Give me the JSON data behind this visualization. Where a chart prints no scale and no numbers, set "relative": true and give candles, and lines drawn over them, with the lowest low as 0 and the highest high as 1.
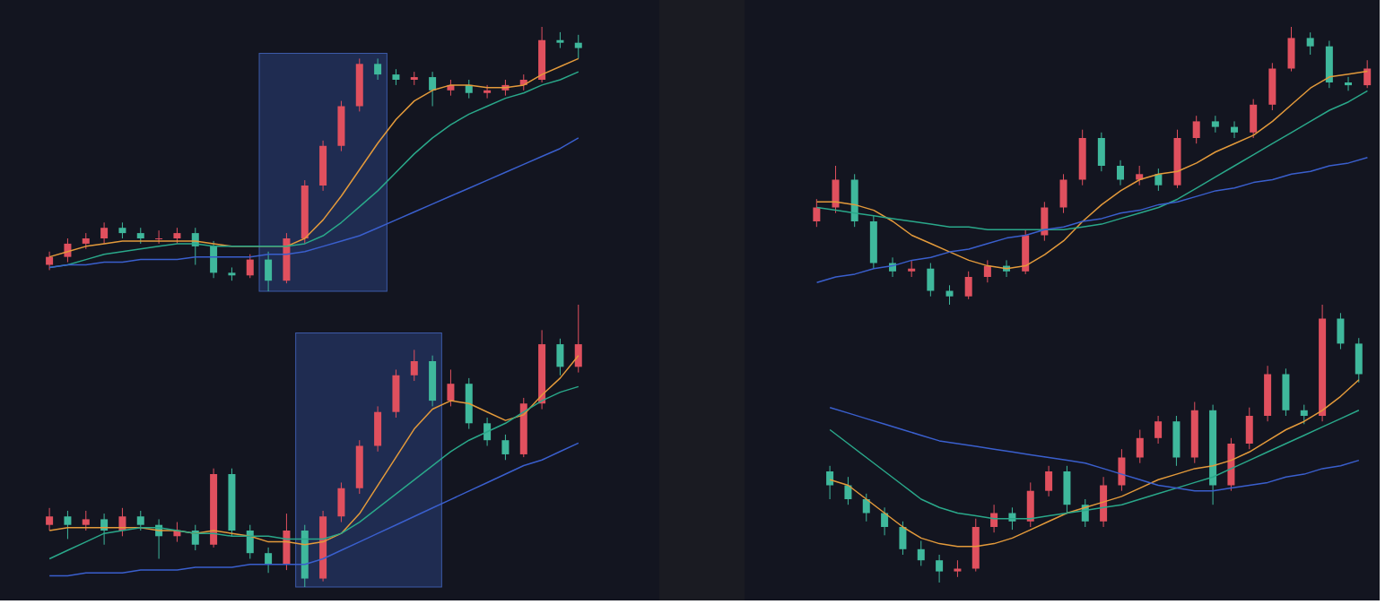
{
  "chart_data": [
    {
      "type": "candlestick",
      "relative": true,
      "colors": [
        "#e0505e",
        "#e0505e",
        "#e0505e",
        "#e0505e",
        "#3fb89c",
        "#3fb89c",
        "#e0505e",
        "#e0505e",
        "#3fb89c",
        "#3fb89c",
        "#3fb89c",
        "#e0505e",
        "#3fb89c",
        "#e0505e",
        "#e0505e",
        "#e0505e",
        "#e0505e",
        "#e0505e",
        "#3fb89c",
        "#3fb89c",
        "#e0505e",
        "#3fb89c",
        "#e0505e",
        "#3fb89c",
        "#e0505e",
        "#e0505e",
        "#e0505e",
        "#e0505e",
        "#3fb89c",
        "#3fb89c"
      ],
      "categories": [
        null,
        null,
        null,
        null,
        null,
        null,
        null,
        null,
        null,
        null,
        null,
        null,
        null,
        null,
        null,
        null,
        null,
        null,
        null,
        null,
        null,
        null,
        null,
        null,
        null,
        null,
        null,
        null,
        null,
        null
      ],
      "ohlc": [
        [
          0.1,
          0.15,
          0.08,
          0.13
        ],
        [
          0.13,
          0.2,
          0.11,
          0.18
        ],
        [
          0.18,
          0.22,
          0.16,
          0.2
        ],
        [
          0.2,
          0.26,
          0.18,
          0.24
        ],
        [
          0.24,
          0.26,
          0.2,
          0.22
        ],
        [
          0.22,
          0.24,
          0.18,
          0.2
        ],
        [
          0.2,
          0.23,
          0.18,
          0.2
        ],
        [
          0.2,
          0.24,
          0.18,
          0.22
        ],
        [
          0.22,
          0.24,
          0.1,
          0.17
        ],
        [
          0.17,
          0.19,
          0.05,
          0.07
        ],
        [
          0.07,
          0.09,
          0.04,
          0.06
        ],
        [
          0.06,
          0.14,
          0.05,
          0.12
        ],
        [
          0.12,
          0.15,
          0,
          0.04
        ],
        [
          0.04,
          0.22,
          0.03,
          0.2
        ],
        [
          0.2,
          0.42,
          0.18,
          0.4
        ],
        [
          0.4,
          0.57,
          0.38,
          0.55
        ],
        [
          0.55,
          0.72,
          0.53,
          0.7
        ],
        [
          0.7,
          0.88,
          0.68,
          0.86
        ],
        [
          0.86,
          0.88,
          0.8,
          0.82
        ],
        [
          0.82,
          0.84,
          0.78,
          0.8
        ],
        [
          0.8,
          0.83,
          0.78,
          0.81
        ],
        [
          0.81,
          0.83,
          0.7,
          0.76
        ],
        [
          0.76,
          0.8,
          0.74,
          0.78
        ],
        [
          0.78,
          0.8,
          0.73,
          0.75
        ],
        [
          0.75,
          0.78,
          0.73,
          0.76
        ],
        [
          0.76,
          0.8,
          0.74,
          0.78
        ],
        [
          0.78,
          0.82,
          0.76,
          0.8
        ],
        [
          0.8,
          1,
          0.79,
          0.95
        ],
        [
          0.95,
          0.98,
          0.92,
          0.94
        ],
        [
          0.94,
          0.97,
          0.88,
          0.92
        ]
      ],
      "series": [
        {
          "type": "line",
          "color": "#e39a3b",
          "values": [
            0.13,
            0.15,
            0.17,
            0.18,
            0.19,
            0.19,
            0.19,
            0.19,
            0.19,
            0.18,
            0.17,
            0.17,
            0.17,
            0.17,
            0.2,
            0.27,
            0.36,
            0.46,
            0.56,
            0.65,
            0.72,
            0.76,
            0.78,
            0.78,
            0.77,
            0.77,
            0.78,
            0.82,
            0.85,
            0.88
          ]
        },
        {
          "type": "line",
          "color": "#2aa88a",
          "values": [
            0.09,
            0.1,
            0.12,
            0.14,
            0.15,
            0.16,
            0.17,
            0.18,
            0.18,
            0.17,
            0.17,
            0.17,
            0.17,
            0.17,
            0.18,
            0.21,
            0.26,
            0.32,
            0.38,
            0.45,
            0.52,
            0.58,
            0.63,
            0.67,
            0.7,
            0.73,
            0.75,
            0.78,
            0.8,
            0.83
          ]
        },
        {
          "type": "line",
          "color": "#3a5fcd",
          "values": [
            0.09,
            0.1,
            0.1,
            0.11,
            0.11,
            0.12,
            0.12,
            0.12,
            0.13,
            0.13,
            0.13,
            0.13,
            0.14,
            0.14,
            0.15,
            0.17,
            0.19,
            0.21,
            0.24,
            0.27,
            0.3,
            0.33,
            0.36,
            0.39,
            0.42,
            0.45,
            0.48,
            0.51,
            0.54,
            0.58
          ]
        }
      ]
    },
    {
      "type": "candlestick",
      "relative": true,
      "colors": [
        "#e0505e",
        "#e0505e",
        "#3fb89c",
        "#3fb89c",
        "#3fb89c",
        "#e0505e",
        "#3fb89c",
        "#3fb89c",
        "#e0505e",
        "#e0505e",
        "#3fb89c",
        "#e0505e",
        "#e0505e",
        "#e0505e",
        "#e0505e",
        "#3fb89c",
        "#3fb89c",
        "#e0505e",
        "#3fb89c",
        "#e0505e",
        "#e0505e",
        "#3fb89c",
        "#3fb89c",
        "#e0505e",
        "#e0505e",
        "#e0505e",
        "#3fb89c",
        "#3fb89c",
        "#3fb89c",
        "#e0505e"
      ],
      "categories": [
        null,
        null,
        null,
        null,
        null,
        null,
        null,
        null,
        null,
        null,
        null,
        null,
        null,
        null,
        null,
        null,
        null,
        null,
        null,
        null,
        null,
        null,
        null,
        null,
        null,
        null,
        null,
        null,
        null,
        null
      ],
      "ohlc": [
        [
          0.3,
          0.38,
          0.28,
          0.35
        ],
        [
          0.35,
          0.5,
          0.33,
          0.45
        ],
        [
          0.45,
          0.47,
          0.28,
          0.3
        ],
        [
          0.3,
          0.32,
          0.13,
          0.15
        ],
        [
          0.15,
          0.17,
          0.1,
          0.12
        ],
        [
          0.12,
          0.16,
          0.1,
          0.13
        ],
        [
          0.13,
          0.15,
          0.03,
          0.05
        ],
        [
          0.05,
          0.07,
          0,
          0.03
        ],
        [
          0.03,
          0.12,
          0.02,
          0.1
        ],
        [
          0.1,
          0.16,
          0.08,
          0.14
        ],
        [
          0.14,
          0.16,
          0.1,
          0.12
        ],
        [
          0.12,
          0.27,
          0.11,
          0.25
        ],
        [
          0.25,
          0.37,
          0.23,
          0.35
        ],
        [
          0.35,
          0.47,
          0.33,
          0.45
        ],
        [
          0.45,
          0.63,
          0.43,
          0.6
        ],
        [
          0.6,
          0.62,
          0.48,
          0.5
        ],
        [
          0.5,
          0.52,
          0.43,
          0.45
        ],
        [
          0.45,
          0.5,
          0.43,
          0.47
        ],
        [
          0.47,
          0.49,
          0.41,
          0.43
        ],
        [
          0.43,
          0.63,
          0.42,
          0.6
        ],
        [
          0.6,
          0.68,
          0.58,
          0.66
        ],
        [
          0.66,
          0.68,
          0.62,
          0.64
        ],
        [
          0.64,
          0.66,
          0.6,
          0.62
        ],
        [
          0.62,
          0.74,
          0.6,
          0.72
        ],
        [
          0.72,
          0.87,
          0.7,
          0.85
        ],
        [
          0.85,
          1,
          0.84,
          0.96
        ],
        [
          0.96,
          0.98,
          0.9,
          0.93
        ],
        [
          0.93,
          0.95,
          0.78,
          0.8
        ],
        [
          0.8,
          0.82,
          0.77,
          0.79
        ],
        [
          0.79,
          0.88,
          0.78,
          0.85
        ]
      ],
      "series": [
        {
          "type": "line",
          "color": "#e39a3b",
          "values": [
            0.37,
            0.37,
            0.36,
            0.34,
            0.3,
            0.25,
            0.22,
            0.19,
            0.16,
            0.14,
            0.13,
            0.14,
            0.18,
            0.23,
            0.3,
            0.36,
            0.41,
            0.45,
            0.47,
            0.48,
            0.51,
            0.55,
            0.58,
            0.61,
            0.66,
            0.72,
            0.78,
            0.82,
            0.83,
            0.84
          ]
        },
        {
          "type": "line",
          "color": "#2aa88a",
          "values": [
            0.35,
            0.34,
            0.33,
            0.32,
            0.31,
            0.3,
            0.29,
            0.28,
            0.28,
            0.27,
            0.27,
            0.27,
            0.27,
            0.27,
            0.28,
            0.29,
            0.31,
            0.33,
            0.35,
            0.38,
            0.42,
            0.46,
            0.5,
            0.54,
            0.58,
            0.62,
            0.66,
            0.7,
            0.73,
            0.77
          ]
        },
        {
          "type": "line",
          "color": "#3a5fcd",
          "values": [
            0.08,
            0.1,
            0.11,
            0.13,
            0.14,
            0.16,
            0.17,
            0.19,
            0.2,
            0.22,
            0.24,
            0.25,
            0.27,
            0.28,
            0.3,
            0.31,
            0.33,
            0.34,
            0.36,
            0.37,
            0.39,
            0.41,
            0.42,
            0.44,
            0.45,
            0.47,
            0.48,
            0.5,
            0.51,
            0.53
          ]
        }
      ]
    },
    {
      "type": "candlestick",
      "relative": true,
      "colors": [
        "#e0505e",
        "#3fb89c",
        "#e0505e",
        "#3fb89c",
        "#e0505e",
        "#3fb89c",
        "#3fb89c",
        "#e0505e",
        "#3fb89c",
        "#e0505e",
        "#3fb89c",
        "#3fb89c",
        "#3fb89c",
        "#e0505e",
        "#3fb89c",
        "#e0505e",
        "#e0505e",
        "#e0505e",
        "#e0505e",
        "#e0505e",
        "#e0505e",
        "#3fb89c",
        "#e0505e",
        "#3fb89c",
        "#3fb89c",
        "#3fb89c",
        "#e0505e",
        "#e0505e",
        "#3fb89c",
        "#e0505e"
      ],
      "categories": [
        null,
        null,
        null,
        null,
        null,
        null,
        null,
        null,
        null,
        null,
        null,
        null,
        null,
        null,
        null,
        null,
        null,
        null,
        null,
        null,
        null,
        null,
        null,
        null,
        null,
        null,
        null,
        null,
        null,
        null
      ],
      "ohlc": [
        [
          0.22,
          0.28,
          0.2,
          0.25
        ],
        [
          0.25,
          0.27,
          0.17,
          0.22
        ],
        [
          0.22,
          0.27,
          0.2,
          0.24
        ],
        [
          0.24,
          0.26,
          0.15,
          0.2
        ],
        [
          0.2,
          0.28,
          0.18,
          0.25
        ],
        [
          0.25,
          0.27,
          0.2,
          0.22
        ],
        [
          0.22,
          0.24,
          0.1,
          0.18
        ],
        [
          0.18,
          0.23,
          0.16,
          0.2
        ],
        [
          0.2,
          0.22,
          0.13,
          0.15
        ],
        [
          0.15,
          0.42,
          0.14,
          0.4
        ],
        [
          0.4,
          0.42,
          0.18,
          0.2
        ],
        [
          0.2,
          0.22,
          0.1,
          0.12
        ],
        [
          0.12,
          0.14,
          0.05,
          0.08
        ],
        [
          0.08,
          0.26,
          0.06,
          0.2
        ],
        [
          0.2,
          0.22,
          0,
          0.03
        ],
        [
          0.03,
          0.27,
          0.02,
          0.25
        ],
        [
          0.25,
          0.37,
          0.23,
          0.35
        ],
        [
          0.35,
          0.52,
          0.33,
          0.5
        ],
        [
          0.5,
          0.64,
          0.48,
          0.62
        ],
        [
          0.62,
          0.77,
          0.6,
          0.75
        ],
        [
          0.75,
          0.84,
          0.73,
          0.8
        ],
        [
          0.8,
          0.82,
          0.64,
          0.66
        ],
        [
          0.66,
          0.77,
          0.64,
          0.72
        ],
        [
          0.72,
          0.74,
          0.56,
          0.58
        ],
        [
          0.58,
          0.6,
          0.5,
          0.52
        ],
        [
          0.52,
          0.54,
          0.45,
          0.47
        ],
        [
          0.47,
          0.67,
          0.46,
          0.65
        ],
        [
          0.65,
          0.91,
          0.63,
          0.86
        ],
        [
          0.86,
          0.88,
          0.75,
          0.78
        ],
        [
          0.78,
          1,
          0.76,
          0.86
        ]
      ],
      "series": [
        {
          "type": "line",
          "color": "#e39a3b",
          "values": [
            0.2,
            0.21,
            0.21,
            0.21,
            0.21,
            0.21,
            0.2,
            0.2,
            0.19,
            0.2,
            0.19,
            0.18,
            0.16,
            0.16,
            0.15,
            0.16,
            0.19,
            0.26,
            0.36,
            0.46,
            0.56,
            0.63,
            0.66,
            0.65,
            0.62,
            0.59,
            0.61,
            0.68,
            0.74,
            0.82
          ]
        },
        {
          "type": "line",
          "color": "#2aa88a",
          "values": [
            0.1,
            0.13,
            0.16,
            0.19,
            0.2,
            0.21,
            0.21,
            0.2,
            0.19,
            0.19,
            0.18,
            0.18,
            0.18,
            0.17,
            0.17,
            0.17,
            0.19,
            0.23,
            0.28,
            0.33,
            0.38,
            0.43,
            0.48,
            0.52,
            0.55,
            0.58,
            0.62,
            0.66,
            0.69,
            0.71
          ]
        },
        {
          "type": "line",
          "color": "#3a5fcd",
          "values": [
            0.04,
            0.04,
            0.05,
            0.05,
            0.05,
            0.06,
            0.06,
            0.06,
            0.07,
            0.07,
            0.07,
            0.08,
            0.08,
            0.08,
            0.08,
            0.1,
            0.13,
            0.16,
            0.19,
            0.22,
            0.25,
            0.28,
            0.31,
            0.34,
            0.37,
            0.4,
            0.43,
            0.45,
            0.48,
            0.51
          ]
        }
      ]
    },
    {
      "type": "candlestick",
      "relative": true,
      "colors": [
        "#3fb89c",
        "#3fb89c",
        "#3fb89c",
        "#3fb89c",
        "#3fb89c",
        "#3fb89c",
        "#3fb89c",
        "#e0505e",
        "#e0505e",
        "#e0505e",
        "#3fb89c",
        "#e0505e",
        "#e0505e",
        "#3fb89c",
        "#3fb89c",
        "#e0505e",
        "#e0505e",
        "#e0505e",
        "#e0505e",
        "#3fb89c",
        "#e0505e",
        "#3fb89c",
        "#e0505e",
        "#e0505e",
        "#e0505e",
        "#3fb89c",
        "#3fb89c",
        "#e0505e",
        "#3fb89c",
        "#3fb89c"
      ],
      "categories": [
        null,
        null,
        null,
        null,
        null,
        null,
        null,
        null,
        null,
        null,
        null,
        null,
        null,
        null,
        null,
        null,
        null,
        null,
        null,
        null,
        null,
        null,
        null,
        null,
        null,
        null,
        null,
        null,
        null,
        null
      ],
      "ohlc": [
        [
          0.4,
          0.42,
          0.3,
          0.35
        ],
        [
          0.35,
          0.38,
          0.28,
          0.3
        ],
        [
          0.3,
          0.32,
          0.22,
          0.25
        ],
        [
          0.25,
          0.27,
          0.17,
          0.2
        ],
        [
          0.2,
          0.22,
          0.1,
          0.12
        ],
        [
          0.12,
          0.15,
          0.06,
          0.08
        ],
        [
          0.08,
          0.1,
          0,
          0.04
        ],
        [
          0.04,
          0.08,
          0.02,
          0.05
        ],
        [
          0.05,
          0.23,
          0.04,
          0.2
        ],
        [
          0.2,
          0.28,
          0.18,
          0.25
        ],
        [
          0.25,
          0.27,
          0.19,
          0.22
        ],
        [
          0.22,
          0.36,
          0.2,
          0.33
        ],
        [
          0.33,
          0.42,
          0.31,
          0.4
        ],
        [
          0.4,
          0.42,
          0.25,
          0.28
        ],
        [
          0.28,
          0.3,
          0.2,
          0.22
        ],
        [
          0.22,
          0.38,
          0.2,
          0.35
        ],
        [
          0.35,
          0.48,
          0.33,
          0.45
        ],
        [
          0.45,
          0.55,
          0.43,
          0.52
        ],
        [
          0.52,
          0.6,
          0.5,
          0.58
        ],
        [
          0.58,
          0.6,
          0.42,
          0.45
        ],
        [
          0.45,
          0.65,
          0.43,
          0.62
        ],
        [
          0.62,
          0.64,
          0.28,
          0.35
        ],
        [
          0.35,
          0.52,
          0.33,
          0.5
        ],
        [
          0.5,
          0.63,
          0.48,
          0.6
        ],
        [
          0.6,
          0.78,
          0.58,
          0.75
        ],
        [
          0.75,
          0.77,
          0.6,
          0.62
        ],
        [
          0.62,
          0.64,
          0.57,
          0.6
        ],
        [
          0.6,
          1,
          0.58,
          0.95
        ],
        [
          0.95,
          0.97,
          0.84,
          0.86
        ],
        [
          0.86,
          0.88,
          0.72,
          0.75
        ]
      ],
      "series": [
        {
          "type": "line",
          "color": "#e39a3b",
          "values": [
            0.37,
            0.35,
            0.3,
            0.25,
            0.2,
            0.16,
            0.14,
            0.13,
            0.13,
            0.14,
            0.16,
            0.19,
            0.22,
            0.25,
            0.27,
            0.29,
            0.31,
            0.34,
            0.37,
            0.39,
            0.41,
            0.42,
            0.44,
            0.47,
            0.51,
            0.55,
            0.58,
            0.62,
            0.67,
            0.73
          ]
        },
        {
          "type": "line",
          "color": "#2aa88a",
          "values": [
            0.55,
            0.5,
            0.45,
            0.4,
            0.35,
            0.3,
            0.27,
            0.25,
            0.24,
            0.23,
            0.23,
            0.23,
            0.24,
            0.25,
            0.26,
            0.27,
            0.28,
            0.3,
            0.32,
            0.34,
            0.36,
            0.38,
            0.41,
            0.44,
            0.47,
            0.5,
            0.53,
            0.56,
            0.59,
            0.62
          ]
        },
        {
          "type": "line",
          "color": "#3a5fcd",
          "values": [
            0.63,
            0.61,
            0.59,
            0.57,
            0.55,
            0.53,
            0.51,
            0.5,
            0.49,
            0.48,
            0.47,
            0.46,
            0.45,
            0.44,
            0.43,
            0.41,
            0.39,
            0.37,
            0.35,
            0.34,
            0.33,
            0.33,
            0.34,
            0.35,
            0.36,
            0.38,
            0.39,
            0.41,
            0.42,
            0.44
          ]
        }
      ]
    }
  ]
}
